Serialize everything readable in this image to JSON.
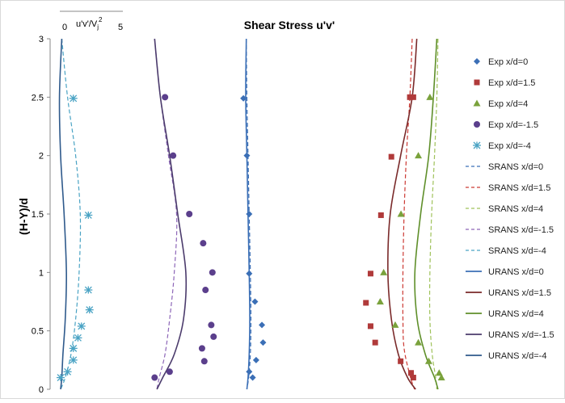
{
  "chart_data": {
    "type": "scatter",
    "title": "Shear Stress u'v'",
    "ylabel": "(H-Y)/d",
    "ylim": [
      0,
      3
    ],
    "yticks": [
      0,
      0.5,
      1,
      1.5,
      2,
      2.5,
      3
    ],
    "ytick_labels": [
      "0",
      "0.5",
      "1",
      "1.5",
      "2",
      "2.5",
      "3"
    ],
    "scale_bar": {
      "label": "u'v'/V",
      "label_sub": "j",
      "label_sup": "2",
      "ticks": [
        "0",
        "5"
      ]
    },
    "x_unit_note": "profiles offset horizontally; scale shown by u'v'/Vj^2 bar (0 to 5)",
    "grid": false,
    "legend_position": "right",
    "series": [
      {
        "name": "Exp x/d=0",
        "kind": "marker",
        "marker": "diamond",
        "color": "#3b6fb6",
        "profile": 3,
        "points": [
          [
            -0.2,
            2.49
          ],
          [
            0.1,
            2.0
          ],
          [
            0.3,
            1.5
          ],
          [
            0.3,
            0.99
          ],
          [
            0.8,
            0.75
          ],
          [
            1.4,
            0.55
          ],
          [
            1.5,
            0.4
          ],
          [
            0.9,
            0.25
          ],
          [
            0.3,
            0.15
          ],
          [
            0.6,
            0.1
          ]
        ]
      },
      {
        "name": "Exp x/d=1.5",
        "kind": "marker",
        "marker": "square",
        "color": "#b03a3a",
        "profile": 4,
        "points": [
          [
            5.6,
            2.5
          ],
          [
            5.9,
            2.5
          ],
          [
            4.0,
            1.99
          ],
          [
            3.1,
            1.49
          ],
          [
            2.2,
            0.99
          ],
          [
            1.8,
            0.74
          ],
          [
            2.2,
            0.54
          ],
          [
            2.6,
            0.4
          ],
          [
            4.8,
            0.24
          ],
          [
            5.7,
            0.14
          ],
          [
            5.9,
            0.1
          ]
        ]
      },
      {
        "name": "Exp x/d=4",
        "kind": "marker",
        "marker": "triangle",
        "color": "#7aa23c",
        "profile": 5,
        "points": [
          [
            -0.5,
            2.5
          ],
          [
            -1.5,
            2.0
          ],
          [
            -3.0,
            1.5
          ],
          [
            -4.5,
            1.0
          ],
          [
            -4.8,
            0.75
          ],
          [
            -3.5,
            0.55
          ],
          [
            -1.5,
            0.4
          ],
          [
            -0.6,
            0.24
          ],
          [
            0.3,
            0.14
          ],
          [
            0.5,
            0.1
          ]
        ]
      },
      {
        "name": "Exp x/d=-1.5",
        "kind": "marker",
        "marker": "circle",
        "color": "#5b3f8c",
        "profile": 2,
        "points": [
          [
            1.2,
            2.5
          ],
          [
            1.9,
            2.0
          ],
          [
            3.3,
            1.5
          ],
          [
            4.5,
            1.25
          ],
          [
            5.3,
            1.0
          ],
          [
            4.7,
            0.85
          ],
          [
            5.2,
            0.55
          ],
          [
            5.4,
            0.45
          ],
          [
            4.4,
            0.35
          ],
          [
            4.6,
            0.24
          ],
          [
            1.6,
            0.15
          ],
          [
            0.3,
            0.1
          ]
        ]
      },
      {
        "name": "Exp x/d=-4",
        "kind": "marker",
        "marker": "asterisk",
        "color": "#4aa3c4",
        "profile": 1,
        "points": [
          [
            1.1,
            2.49
          ],
          [
            2.4,
            1.49
          ],
          [
            2.4,
            0.85
          ],
          [
            2.5,
            0.68
          ],
          [
            1.8,
            0.54
          ],
          [
            1.5,
            0.44
          ],
          [
            1.1,
            0.35
          ],
          [
            1.1,
            0.25
          ],
          [
            0.6,
            0.15
          ],
          [
            0.0,
            0.1
          ]
        ]
      },
      {
        "name": "SRANS x/d=0",
        "kind": "line",
        "dash": true,
        "color": "#3b6fb6",
        "profile": 3,
        "points": [
          [
            0.05,
            3.0
          ],
          [
            0.1,
            2.5
          ],
          [
            0.2,
            2.0
          ],
          [
            0.3,
            1.5
          ],
          [
            0.4,
            1.0
          ],
          [
            0.45,
            0.6
          ],
          [
            0.4,
            0.3
          ],
          [
            0.25,
            0.1
          ],
          [
            0.1,
            0.0
          ]
        ]
      },
      {
        "name": "SRANS x/d=1.5",
        "kind": "line",
        "dash": true,
        "color": "#cc3a34",
        "profile": 4,
        "points": [
          [
            5.8,
            3.0
          ],
          [
            5.6,
            2.5
          ],
          [
            5.3,
            2.0
          ],
          [
            5.1,
            1.5
          ],
          [
            5.0,
            1.0
          ],
          [
            5.0,
            0.6
          ],
          [
            5.1,
            0.35
          ],
          [
            5.6,
            0.12
          ],
          [
            6.0,
            0.0
          ]
        ]
      },
      {
        "name": "SRANS x/d=4",
        "kind": "line",
        "dash": true,
        "color": "#9fc25a",
        "profile": 5,
        "points": [
          [
            0.2,
            3.0
          ],
          [
            0.1,
            2.5
          ],
          [
            -0.1,
            2.0
          ],
          [
            -0.35,
            1.5
          ],
          [
            -0.5,
            1.0
          ],
          [
            -0.5,
            0.6
          ],
          [
            -0.3,
            0.3
          ],
          [
            0.0,
            0.1
          ],
          [
            0.1,
            0.0
          ]
        ]
      },
      {
        "name": "SRANS x/d=-1.5",
        "kind": "line",
        "dash": true,
        "color": "#8d66b8",
        "profile": 2,
        "points": [
          [
            0.3,
            3.0
          ],
          [
            0.8,
            2.5
          ],
          [
            1.5,
            2.0
          ],
          [
            2.2,
            1.5
          ],
          [
            2.0,
            1.0
          ],
          [
            1.6,
            0.6
          ],
          [
            1.2,
            0.3
          ],
          [
            0.7,
            0.1
          ],
          [
            0.5,
            0.0
          ]
        ]
      },
      {
        "name": "SRANS x/d=-4",
        "kind": "line",
        "dash": true,
        "color": "#4aa3c4",
        "profile": 1,
        "points": [
          [
            0.1,
            3.0
          ],
          [
            0.6,
            2.5
          ],
          [
            1.3,
            2.0
          ],
          [
            1.7,
            1.5
          ],
          [
            1.6,
            1.0
          ],
          [
            1.3,
            0.6
          ],
          [
            0.9,
            0.3
          ],
          [
            0.4,
            0.1
          ],
          [
            0.0,
            0.0
          ]
        ]
      },
      {
        "name": "URANS x/d=0",
        "kind": "line",
        "dash": false,
        "color": "#3b6fb6",
        "profile": 3,
        "points": [
          [
            0.05,
            3.0
          ],
          [
            0.0,
            2.5
          ],
          [
            0.1,
            2.0
          ],
          [
            0.2,
            1.5
          ],
          [
            0.3,
            1.0
          ],
          [
            0.35,
            0.6
          ],
          [
            0.3,
            0.3
          ],
          [
            0.2,
            0.1
          ],
          [
            0.1,
            0.0
          ]
        ]
      },
      {
        "name": "URANS x/d=1.5",
        "kind": "line",
        "dash": false,
        "color": "#7a2a2a",
        "profile": 4,
        "points": [
          [
            6.2,
            3.0
          ],
          [
            5.8,
            2.5
          ],
          [
            4.8,
            2.0
          ],
          [
            3.9,
            1.5
          ],
          [
            3.7,
            1.0
          ],
          [
            4.0,
            0.6
          ],
          [
            4.6,
            0.3
          ],
          [
            5.4,
            0.1
          ],
          [
            6.1,
            0.0
          ]
        ]
      },
      {
        "name": "URANS x/d=4",
        "kind": "line",
        "dash": false,
        "color": "#5f8f2a",
        "profile": 5,
        "points": [
          [
            0.1,
            3.0
          ],
          [
            -0.2,
            2.5
          ],
          [
            -0.6,
            2.0
          ],
          [
            -1.3,
            1.5
          ],
          [
            -1.8,
            1.0
          ],
          [
            -1.6,
            0.6
          ],
          [
            -0.9,
            0.3
          ],
          [
            -0.1,
            0.1
          ],
          [
            0.2,
            0.0
          ]
        ]
      },
      {
        "name": "URANS x/d=-1.5",
        "kind": "line",
        "dash": false,
        "color": "#4b3b6c",
        "profile": 2,
        "points": [
          [
            0.3,
            3.0
          ],
          [
            0.8,
            2.5
          ],
          [
            1.6,
            2.0
          ],
          [
            2.3,
            1.5
          ],
          [
            3.0,
            1.0
          ],
          [
            2.8,
            0.6
          ],
          [
            2.0,
            0.3
          ],
          [
            1.0,
            0.1
          ],
          [
            0.5,
            0.0
          ]
        ]
      },
      {
        "name": "URANS x/d=-4",
        "kind": "line",
        "dash": false,
        "color": "#2f5a8c",
        "profile": 1,
        "points": [
          [
            0.1,
            3.0
          ],
          [
            -0.1,
            2.5
          ],
          [
            0.0,
            2.0
          ],
          [
            0.3,
            1.5
          ],
          [
            0.5,
            1.0
          ],
          [
            0.4,
            0.6
          ],
          [
            0.2,
            0.3
          ],
          [
            0.1,
            0.1
          ],
          [
            0.0,
            0.0
          ]
        ]
      }
    ]
  }
}
